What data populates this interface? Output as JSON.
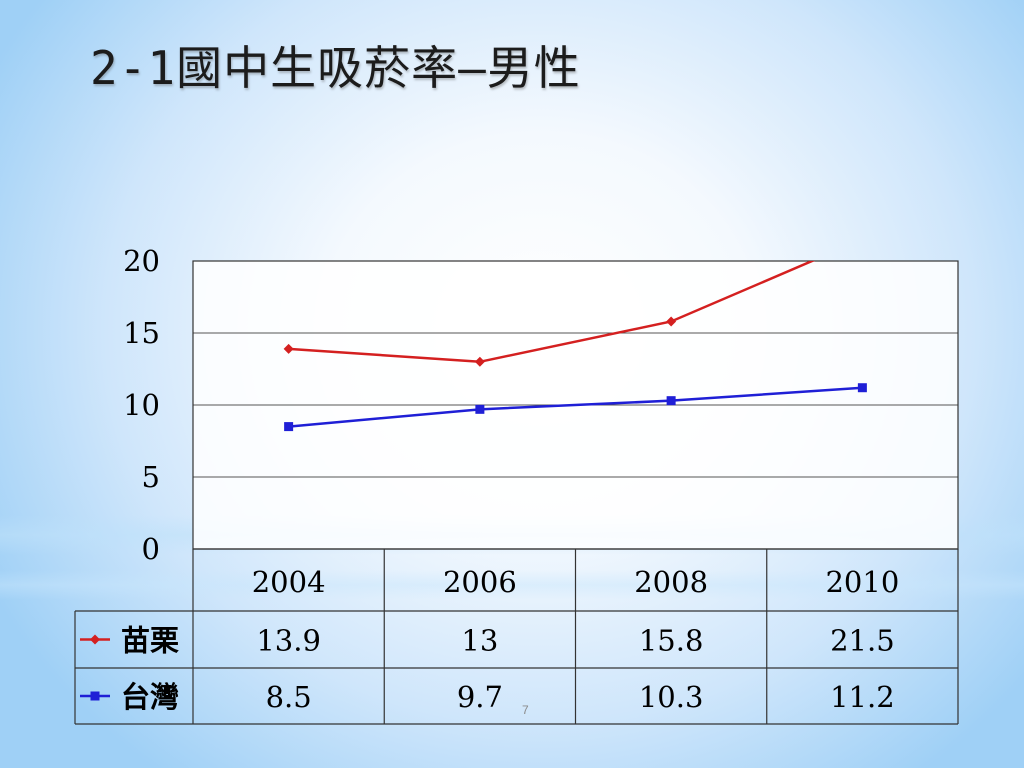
{
  "title": "2-1國中生吸菸率—男性",
  "page_number": "7",
  "chart_data": {
    "type": "line",
    "title": "2-1國中生吸菸率—男性",
    "categories": [
      "2004",
      "2006",
      "2008",
      "2010"
    ],
    "y_ticks": [
      "0",
      "5",
      "10",
      "15",
      "20"
    ],
    "ylim": [
      0,
      20
    ],
    "grid": true,
    "legend": "data-table",
    "series": [
      {
        "name": "苗栗",
        "color": "#d42020",
        "marker": "diamond",
        "values": [
          13.9,
          13,
          15.8,
          21.5
        ],
        "labels": [
          "13.9",
          "13",
          "15.8",
          "21.5"
        ]
      },
      {
        "name": "台灣",
        "color": "#1f1fd6",
        "marker": "square",
        "values": [
          8.5,
          9.7,
          10.3,
          11.2
        ],
        "labels": [
          "8.5",
          "9.7",
          "10.3",
          "11.2"
        ]
      }
    ]
  }
}
